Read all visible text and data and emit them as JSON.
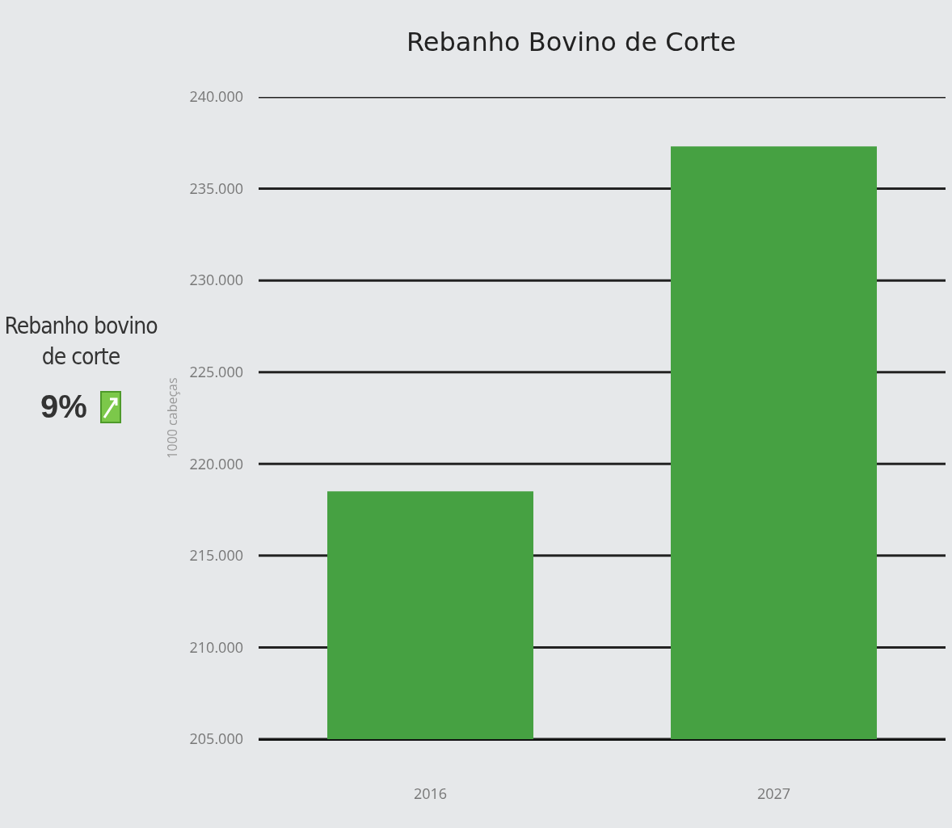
{
  "chart_data": {
    "type": "bar",
    "title": "Rebanho Bovino de Corte",
    "ylabel": "1000 cabeças",
    "categories": [
      "2016",
      "2027"
    ],
    "values": [
      218500,
      237300
    ],
    "color": "#46a142",
    "ylim": [
      205000,
      240000
    ],
    "yticks": [
      {
        "value": 205000,
        "label": "205.000"
      },
      {
        "value": 210000,
        "label": "210.000"
      },
      {
        "value": 215000,
        "label": "215.000"
      },
      {
        "value": 220000,
        "label": "220.000"
      },
      {
        "value": 225000,
        "label": "225.000"
      },
      {
        "value": 230000,
        "label": "230.000"
      },
      {
        "value": 235000,
        "label": "235.000"
      },
      {
        "value": 240000,
        "label": "240.000"
      }
    ],
    "grid": "y",
    "annotations": [
      "Rebanho bovino de corte",
      "9%"
    ]
  }
}
